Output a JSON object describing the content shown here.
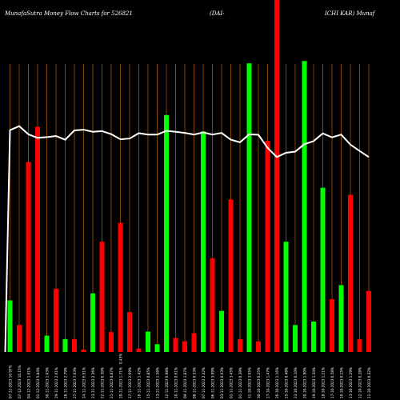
{
  "title": {
    "part1": "MunafaSutra  Money Flow  Charts for 526821",
    "part2": "(DAI-",
    "part3": "ICHI KAR) Munaf"
  },
  "chart_data": {
    "type": "bar",
    "title": "MunafaSutra  Money Flow  Charts for 526821 (DAI-ICHI KAR) Munaf",
    "up_color": "#00ff00",
    "down_color": "#ff0000",
    "line_color": "#ffffff",
    "grid_color": "#b8640a",
    "background": "#000000",
    "bars": [
      {
        "label": "07-12-2023 10.97%",
        "value": 22,
        "dir": "up"
      },
      {
        "label": "07-12-2023 10.15%",
        "value": 11.5,
        "dir": "down"
      },
      {
        "label": "04-12-2023 1.61%",
        "value": 81,
        "dir": "down"
      },
      {
        "label": "01-12-2023 5.84%",
        "value": 96,
        "dir": "down"
      },
      {
        "label": "30-11-2023 1.03%",
        "value": 7,
        "dir": "up"
      },
      {
        "label": "29-11-2023 2.61%",
        "value": 27,
        "dir": "down"
      },
      {
        "label": "28-11-2023 2.79%",
        "value": 5.5,
        "dir": "up"
      },
      {
        "label": "27-11-2023 7.03%",
        "value": 5.5,
        "dir": "down"
      },
      {
        "label": "24-11-2023 6.91%",
        "value": 1,
        "dir": "down"
      },
      {
        "label": "23-11-2023 2.36%",
        "value": 25,
        "dir": "up"
      },
      {
        "label": "22-11-2023 6.30%",
        "value": 47,
        "dir": "down"
      },
      {
        "label": "21-11-2023 0.87%",
        "value": 8.5,
        "dir": "down"
      },
      {
        "label": "20-11-2023 1.71%",
        "value": 55,
        "dir": "down"
      },
      {
        "label": "17-11-2023 2.69%",
        "value": 17,
        "dir": "down"
      },
      {
        "label": "16-11-2023 1.42%",
        "value": 1.5,
        "dir": "down"
      },
      {
        "label": "15-11-2023 0.85%",
        "value": 8.7,
        "dir": "up"
      },
      {
        "label": "13-11-2023 1.58%",
        "value": 3.3,
        "dir": "up"
      },
      {
        "label": "12-11-2023 0.98%",
        "value": 101,
        "dir": "up"
      },
      {
        "label": "10-11-2023 0.61%",
        "value": 6,
        "dir": "down"
      },
      {
        "label": "09-11-2023 1.87%",
        "value": 4.6,
        "dir": "down"
      },
      {
        "label": "08-11-2023 0.33%",
        "value": 8,
        "dir": "down"
      },
      {
        "label": "07-11-2023 2.42%",
        "value": 94,
        "dir": "up"
      },
      {
        "label": "06-11-2023 3.99%",
        "value": 40,
        "dir": "down"
      },
      {
        "label": "03-11-2023 0.03%",
        "value": 17.5,
        "dir": "up"
      },
      {
        "label": "02-11-2023 3.45%",
        "value": 65,
        "dir": "down"
      },
      {
        "label": "01-11-2023 0.39%",
        "value": 5.5,
        "dir": "down"
      },
      {
        "label": "31-10-2023 3.05%",
        "value": 123,
        "dir": "up"
      },
      {
        "label": "30-10-2023 0.25%",
        "value": 4.5,
        "dir": "down"
      },
      {
        "label": "27-10-2023 1.47%",
        "value": 90,
        "dir": "down"
      },
      {
        "label": "26-10-2023 1.16%",
        "value": 150,
        "dir": "down"
      },
      {
        "label": "25-10-2023 0.48%",
        "value": 47,
        "dir": "up"
      },
      {
        "label": "23-10-2023 0.10%",
        "value": 11.5,
        "dir": "up"
      },
      {
        "label": "20-10-2023 1.90%",
        "value": 124,
        "dir": "up"
      },
      {
        "label": "19-10-2023 1.34%",
        "value": 13,
        "dir": "up"
      },
      {
        "label": "18-10-2023 1.21%",
        "value": 70,
        "dir": "up"
      },
      {
        "label": "17-10-2023 0.58%",
        "value": 22.5,
        "dir": "down"
      },
      {
        "label": "16-10-2023 0.15%",
        "value": 28.5,
        "dir": "up"
      },
      {
        "label": "13-10-2023 1.29%",
        "value": 67,
        "dir": "down"
      },
      {
        "label": "12-10-2023 0.28%",
        "value": 5.5,
        "dir": "down"
      },
      {
        "label": "11-10-2023 0.32%",
        "value": 26,
        "dir": "down"
      }
    ],
    "price_line": [
      98.3,
      100,
      96.5,
      95,
      95.3,
      95.8,
      94.2,
      98.2,
      98.5,
      97.6,
      97.9,
      96.6,
      94.4,
      94.7,
      97,
      96.4,
      96.4,
      98,
      97.6,
      97.1,
      96.4,
      97.3,
      96.4,
      97.1,
      94.2,
      93.1,
      96.5,
      96.3,
      90.7,
      86.8,
      88.6,
      89.1,
      92.3,
      93.6,
      96.9,
      95.2,
      96.4,
      92.1,
      89.4,
      86.8
    ],
    "annotation": "0.43%"
  }
}
